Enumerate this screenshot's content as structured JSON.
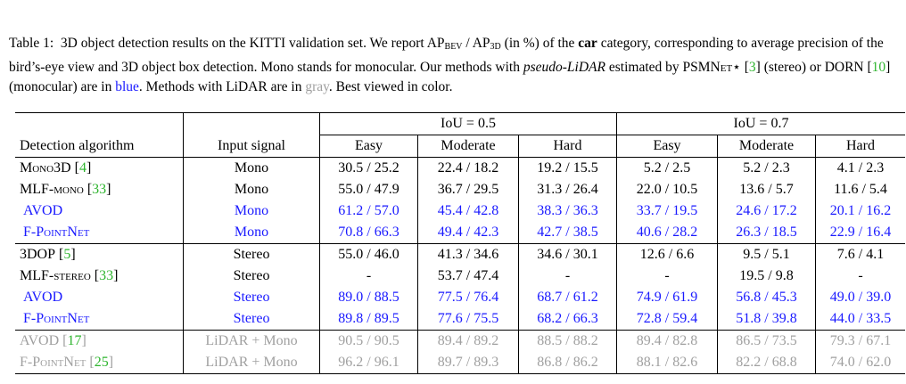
{
  "caption": {
    "label": "Table 1:",
    "t1": "3D object detection results on the KITTI validation set. We report AP",
    "sub_bev": "BEV",
    "t2": " / AP",
    "sub_3d": "3D",
    "t3": " (in %) of the ",
    "bold": "car",
    "t4": " category, corresponding to average precision of the bird’s-eye view and 3D object box detection. Mono stands for monocular. Our methods with ",
    "italic": "pseudo-LiDAR",
    "t5": " estimated by ",
    "psmnet": "PSMNet⋆",
    "t6": " [",
    "ref1": "3",
    "t7": "] (stereo) or DORN [",
    "ref2": "10",
    "t8": "] (monocular) are in ",
    "blue_word": "blue",
    "t9": ". Methods with LiDAR are in ",
    "gray_word": "gray",
    "t10": ". Best viewed in color."
  },
  "table": {
    "iou_05": "IoU = 0.5",
    "iou_07": "IoU = 0.7",
    "col_algorithm": "Detection algorithm",
    "col_input": "Input signal",
    "easy": "Easy",
    "moderate": "Moderate",
    "hard": "Hard",
    "rows": [
      {
        "name": "Mono3D",
        "ref": "4",
        "input": "Mono",
        "v": [
          "30.5 / 25.2",
          "22.4 / 18.2",
          "19.2 / 15.5",
          "5.2 / 2.5",
          "5.2 / 2.3",
          "4.1 / 2.3"
        ]
      },
      {
        "name": "MLF-mono",
        "ref": "33",
        "input": "Mono",
        "v": [
          "55.0 / 47.9",
          "36.7 / 29.5",
          "31.3 / 26.4",
          "22.0 / 10.5",
          "13.6 / 5.7",
          "11.6 / 5.4"
        ]
      },
      {
        "name": "AVOD",
        "ref": "",
        "input": "Mono",
        "v": [
          "61.2 / 57.0",
          "45.4 / 42.8",
          "38.3 / 36.3",
          "33.7 / 19.5",
          "24.6 / 17.2",
          "20.1 / 16.2"
        ]
      },
      {
        "name": "F-PointNet",
        "ref": "",
        "input": "Mono",
        "v": [
          "70.8 / 66.3",
          "49.4 / 42.3",
          "42.7 / 38.5",
          "40.6 / 28.2",
          "26.3 / 18.5",
          "22.9 / 16.4"
        ]
      },
      {
        "name": "3DOP",
        "ref": "5",
        "input": "Stereo",
        "v": [
          "55.0 / 46.0",
          "41.3 / 34.6",
          "34.6 / 30.1",
          "12.6 / 6.6",
          "9.5 / 5.1",
          "7.6 / 4.1"
        ]
      },
      {
        "name": "MLF-stereo",
        "ref": "33",
        "input": "Stereo",
        "v": [
          "-",
          "53.7 / 47.4",
          "-",
          "-",
          "19.5 / 9.8",
          "-"
        ]
      },
      {
        "name": "AVOD",
        "ref": "",
        "input": "Stereo",
        "v": [
          "89.0 / 88.5",
          "77.5 / 76.4",
          "68.7 / 61.2",
          "74.9 / 61.9",
          "56.8 / 45.3",
          "49.0 / 39.0"
        ]
      },
      {
        "name": "F-PointNet",
        "ref": "",
        "input": "Stereo",
        "v": [
          "89.8 / 89.5",
          "77.6 / 75.5",
          "68.2 / 66.3",
          "72.8 / 59.4",
          "51.8 / 39.8",
          "44.0 / 33.5"
        ]
      },
      {
        "name": "AVOD",
        "ref": "17",
        "input": "LiDAR + Mono",
        "v": [
          "90.5 / 90.5",
          "89.4 / 89.2",
          "88.5 / 88.2",
          "89.4 / 82.8",
          "86.5 / 73.5",
          "79.3 / 67.1"
        ]
      },
      {
        "name": "F-PointNet",
        "ref": "25",
        "input": "LiDAR + Mono",
        "v": [
          "96.2 / 96.1",
          "89.7 / 89.3",
          "86.8 / 86.2",
          "88.1 / 82.6",
          "82.2 / 68.8",
          "74.0 / 62.0"
        ]
      }
    ]
  },
  "colors": {
    "ours": "#1a1aff",
    "lidar": "#a0a0a0",
    "citation": "#2fb52f"
  }
}
